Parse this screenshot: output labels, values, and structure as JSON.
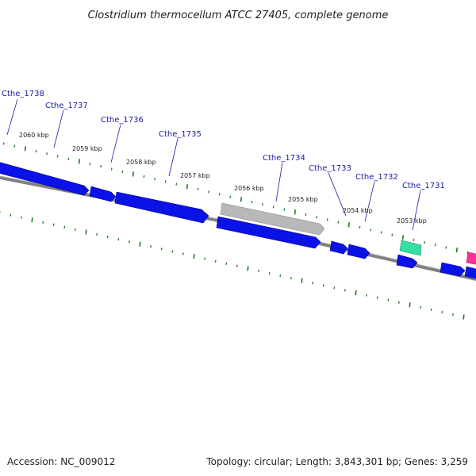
{
  "title": "Clostridium thermocellum ATCC 27405, complete genome",
  "footer": {
    "accession": "Accession: NC_009012",
    "summary": "Topology: circular; Length: 3,843,301 bp; Genes: 3,259"
  },
  "colors": {
    "cds": "#0a12e8",
    "pseudo": "#b8b8b8",
    "rna": "#33e0a0",
    "misc": "#ff2f9a",
    "tick": "#1f7a1f",
    "backbone": "#808080",
    "label": "#1a1aa6",
    "leader": "#1a1aa6"
  },
  "kbp_labels": [
    "2060 kbp",
    "2059 kbp",
    "2058 kbp",
    "2057 kbp",
    "2056 kbp",
    "2055 kbp",
    "2054 kbp",
    "2053 kbp"
  ],
  "gene_labels": [
    "Cthe_1738",
    "Cthe_1737",
    "Cthe_1736",
    "Cthe_1735",
    "Cthe_1734",
    "Cthe_1733",
    "Cthe_1732",
    "Cthe_1731"
  ],
  "feature_types": [
    "CDS",
    "CDS",
    "CDS",
    "CDS",
    "pseudogene",
    "CDS",
    "CDS",
    "CDS",
    "RNA",
    "CDS",
    "CDS",
    "misc"
  ]
}
